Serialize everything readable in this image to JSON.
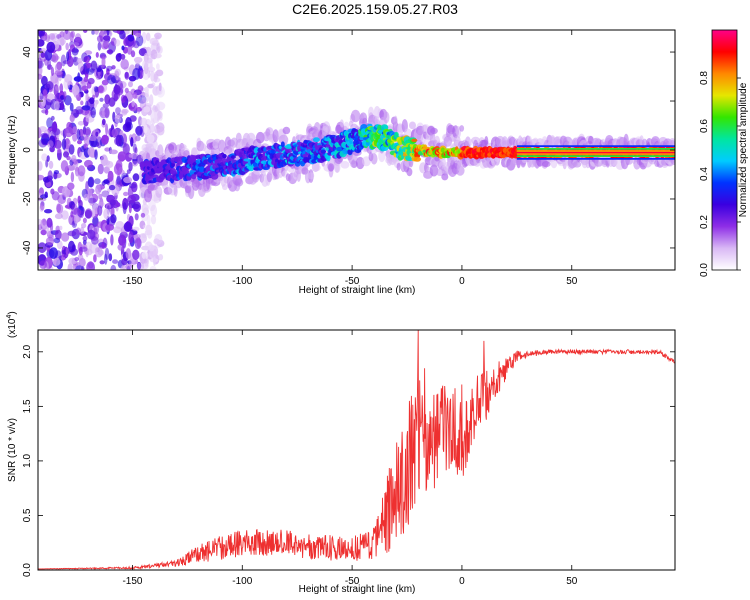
{
  "page_title": "C2E6.2025.159.05.27.R03",
  "colors": {
    "background": "#ffffff",
    "axis": "#000000",
    "snr_line": "#ee3030"
  },
  "chart_data": [
    {
      "type": "heatmap",
      "title": "C2E6.2025.159.05.27.R03",
      "xlabel": "Height of straight line (km)",
      "ylabel": "Frequency (Hz)",
      "xlim": [
        -193,
        97
      ],
      "ylim": [
        -49,
        49
      ],
      "xticks": [
        -150,
        -100,
        -50,
        0,
        50
      ],
      "xtick_labels": [
        "-150",
        "-100",
        "-50",
        "0",
        "50"
      ],
      "yticks": [
        -40,
        -20,
        0,
        20,
        40
      ],
      "ytick_labels": [
        "-40",
        "-20",
        "0",
        "20",
        "40"
      ],
      "colorbar": {
        "label": "Normalized spectral amplitude",
        "range": [
          0,
          1
        ],
        "ticks": [
          0,
          0.2,
          0.4,
          0.6,
          0.8
        ],
        "tick_labels": [
          "0.0",
          "0.2",
          "0.4",
          "0.6",
          "0.8"
        ],
        "colormap": [
          "#ffffff",
          "#d9b8f5",
          "#8e2ee6",
          "#3a00e0",
          "#0033ff",
          "#00ccff",
          "#00e6a0",
          "#33e600",
          "#e6e600",
          "#ff8800",
          "#ff0000",
          "#ff0088"
        ]
      },
      "signal_ridge": {
        "x": [
          -145,
          -130,
          -110,
          -90,
          -70,
          -55,
          -45,
          -40,
          -35,
          -28,
          -20,
          -10,
          0,
          10,
          30,
          60,
          95
        ],
        "freq": [
          -9,
          -8,
          -6,
          -3,
          -1,
          2,
          5,
          6,
          5,
          1,
          0,
          -1,
          -1,
          -1,
          -1,
          -1,
          -1
        ],
        "peak_amplitude": [
          0.35,
          0.4,
          0.45,
          0.5,
          0.5,
          0.55,
          0.6,
          0.75,
          0.7,
          0.75,
          0.9,
          0.95,
          0.95,
          0.95,
          0.95,
          0.95,
          0.95
        ]
      },
      "noise_region_x": [
        -193,
        -145
      ]
    },
    {
      "type": "line",
      "xlabel": "Height of straight line (km)",
      "ylabel": "SNR (10 * v/v)",
      "y_multiplier": "(x10^4)",
      "y_multiplier_text": "(x10",
      "y_multiplier_exp": "4",
      "y_multiplier_close": ")",
      "xlim": [
        -193,
        97
      ],
      "ylim": [
        0,
        2.2
      ],
      "xticks": [
        -150,
        -100,
        -50,
        0,
        50
      ],
      "xtick_labels": [
        "-150",
        "-100",
        "-50",
        "0",
        "50"
      ],
      "yticks": [
        0,
        0.5,
        1.0,
        1.5,
        2.0
      ],
      "ytick_labels": [
        "0.0",
        "0.5",
        "1.0",
        "1.5",
        "2.0"
      ],
      "series": [
        {
          "x": [
            -193,
            -150,
            -130,
            -120,
            -110,
            -100,
            -90,
            -80,
            -70,
            -60,
            -50,
            -40,
            -35,
            -30,
            -25,
            -22,
            -20,
            -15,
            -10,
            -5,
            0,
            5,
            10,
            15,
            20,
            25,
            30,
            40,
            50,
            60,
            70,
            80,
            90,
            97
          ],
          "y": [
            0.01,
            0.02,
            0.06,
            0.15,
            0.2,
            0.25,
            0.25,
            0.25,
            0.22,
            0.2,
            0.2,
            0.25,
            0.45,
            0.75,
            0.9,
            1.1,
            1.2,
            1.05,
            1.25,
            1.35,
            1.15,
            1.45,
            1.55,
            1.7,
            1.85,
            1.95,
            1.98,
            2.0,
            2.0,
            2.0,
            2.0,
            2.0,
            2.0,
            1.9
          ],
          "noise_amplitude": [
            0,
            0.01,
            0.03,
            0.08,
            0.12,
            0.12,
            0.12,
            0.12,
            0.12,
            0.12,
            0.12,
            0.15,
            0.35,
            0.45,
            0.55,
            0.6,
            0.6,
            0.5,
            0.45,
            0.4,
            0.4,
            0.3,
            0.3,
            0.2,
            0.1,
            0.06,
            0.03,
            0.02,
            0.02,
            0.02,
            0.02,
            0.02,
            0.02,
            0.02
          ],
          "peaks": [
            {
              "x": -24,
              "y": 1.55
            },
            {
              "x": -20,
              "y": 2.2
            },
            {
              "x": -17,
              "y": 1.85
            },
            {
              "x": 0,
              "y": 1.7
            },
            {
              "x": 10,
              "y": 2.1
            }
          ]
        }
      ]
    }
  ]
}
